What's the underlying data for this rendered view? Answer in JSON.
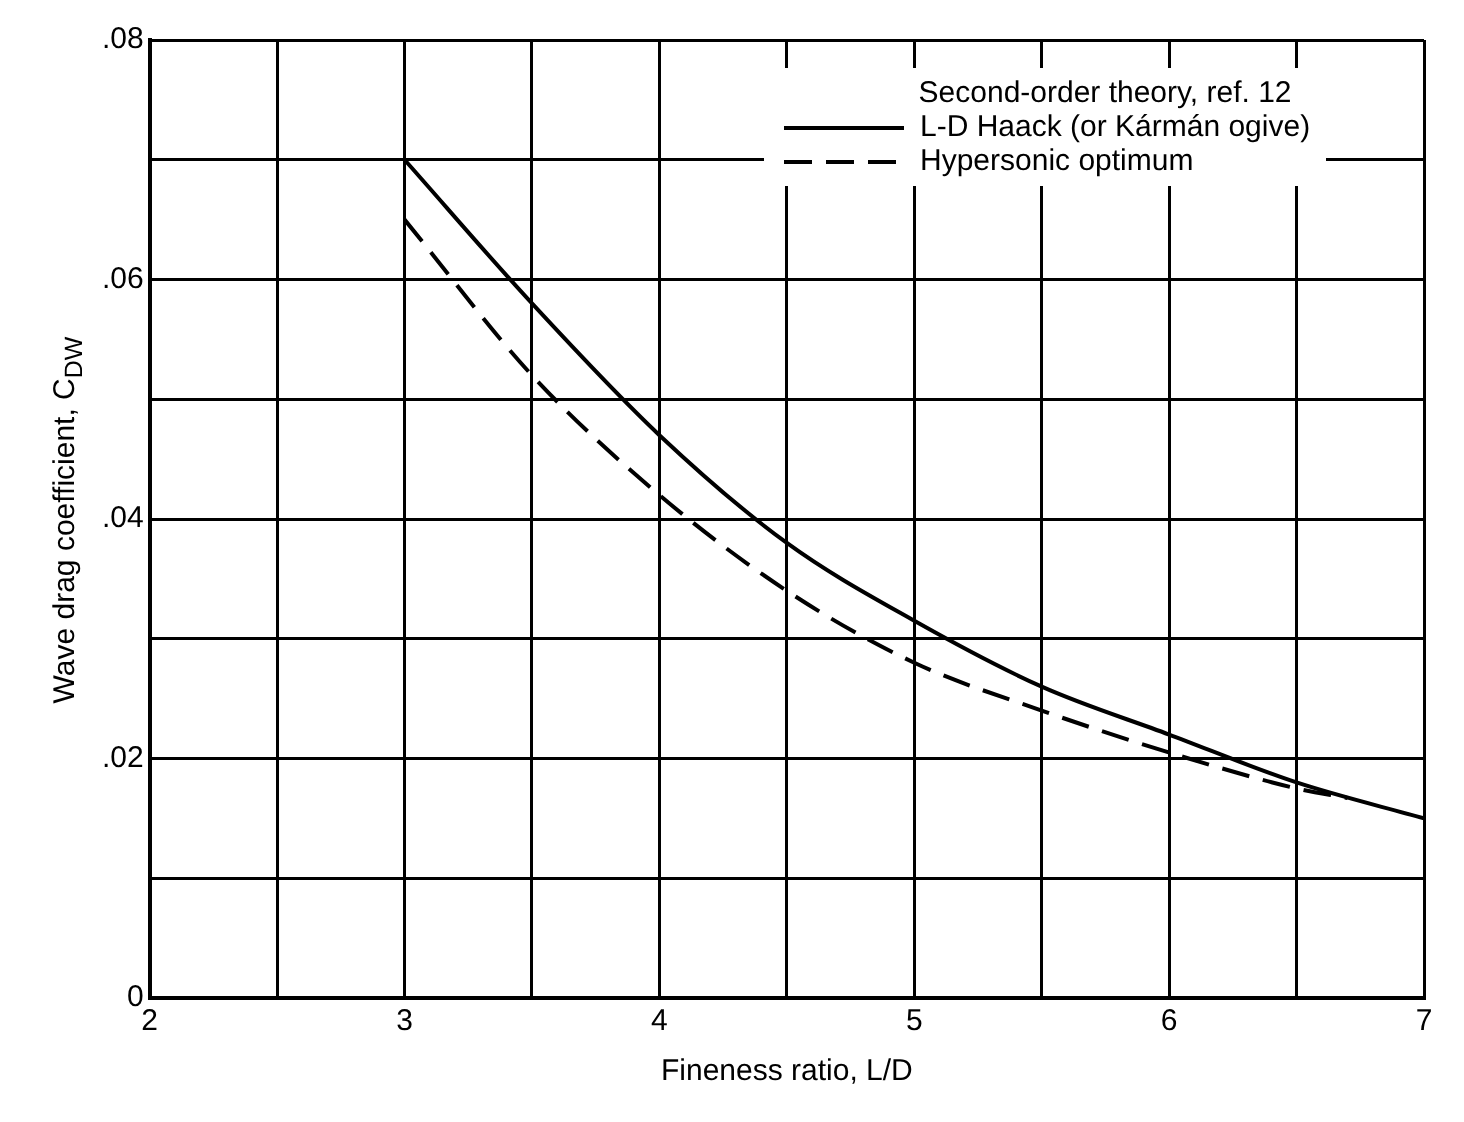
{
  "chart_data": {
    "type": "line",
    "xlabel": "Fineness ratio, L/D",
    "ylabel": "Wave drag coefficient, C$_{DW}$",
    "legend_title": "Second-order theory, ref. 12",
    "x": [
      3,
      3.5,
      4,
      4.5,
      5,
      5.5,
      6,
      6.5,
      7
    ],
    "series": [
      {
        "name": "L-D Haack (or Kármán ogive)",
        "color": "#000000",
        "line_style": "solid",
        "values": [
          0.07,
          0.058,
          0.047,
          0.038,
          0.0315,
          0.026,
          0.022,
          0.018,
          0.015
        ]
      },
      {
        "name": "Hypersonic optimum",
        "color": "#000000",
        "line_style": "dashed",
        "x": [
          3,
          3.5,
          4,
          4.5,
          5,
          5.5,
          6,
          6.5,
          6.7
        ],
        "values": [
          0.065,
          0.052,
          0.042,
          0.034,
          0.028,
          0.024,
          0.0205,
          0.0175,
          0.0167
        ]
      }
    ],
    "xlim": [
      2,
      7
    ],
    "xticks": [
      2,
      {
        "value": 2.5,
        "label": null
      },
      3,
      {
        "value": 3.5,
        "label": null
      },
      4,
      {
        "value": 4.5,
        "label": null
      },
      5,
      {
        "value": 5.5,
        "label": null
      },
      6,
      {
        "value": 6.5,
        "label": null
      },
      7
    ],
    "ylim": [
      0,
      0.08
    ],
    "yticks": [
      {
        "value": 0,
        "label": "0"
      },
      {
        "value": 0.01,
        "label": null
      },
      {
        "value": 0.02,
        "label": ".02"
      },
      {
        "value": 0.03,
        "label": null
      },
      {
        "value": 0.04,
        "label": ".04"
      },
      {
        "value": 0.05,
        "label": null
      },
      {
        "value": 0.06,
        "label": ".06"
      },
      {
        "value": 0.07,
        "label": null
      },
      {
        "value": 0.08,
        "label": ".08"
      }
    ],
    "grid": true,
    "legend": "top right",
    "marker": "none"
  }
}
